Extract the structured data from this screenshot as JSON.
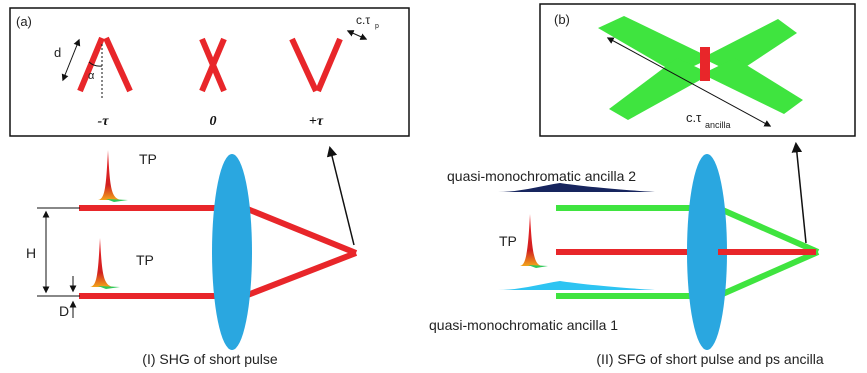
{
  "panel_a": {
    "tag": "(a)",
    "length_label": "d",
    "angle_label": "α",
    "pulse_len_label": "c.τ",
    "pulse_len_sub": "p",
    "delay_labels": [
      "-τ",
      "0",
      "+τ"
    ]
  },
  "panel_b": {
    "tag": "(b)",
    "ancilla_len_label": "c.τ",
    "ancilla_len_sub": "ancilla"
  },
  "left": {
    "tp_top": "TP",
    "tp_bottom": "TP",
    "separation_label": "H",
    "beam_width_label": "D",
    "caption": "(I) SHG of short pulse"
  },
  "right": {
    "ancilla_2": "quasi-monochromatic ancilla 2",
    "ancilla_1": "quasi-monochromatic ancilla 1",
    "tp": "TP",
    "caption": "(II) SFG of short pulse and ps ancilla"
  },
  "colors": {
    "beam_red": "#e8262a",
    "beam_green": "#3fe43f",
    "lens_blue": "#2aa7e0",
    "ancilla_dark": "#17255e",
    "ancilla_light": "#2ec4f2"
  }
}
